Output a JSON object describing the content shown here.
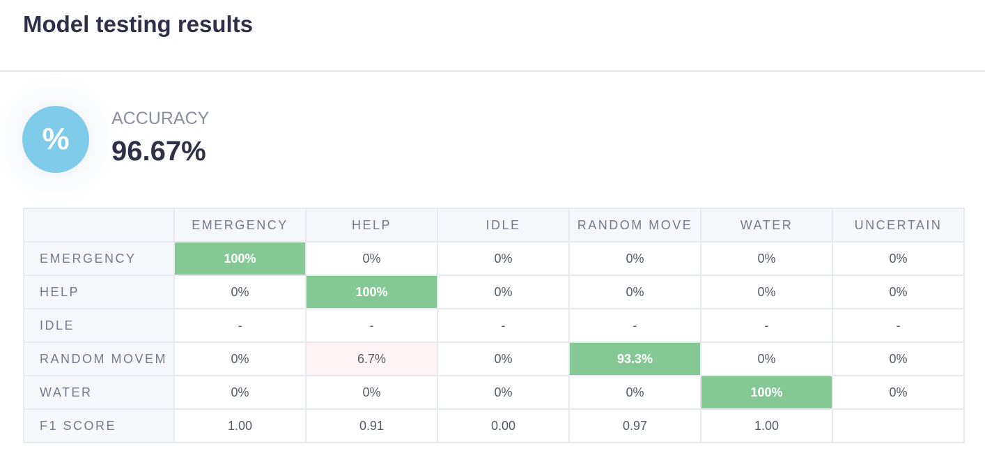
{
  "header": {
    "title": "Model testing results"
  },
  "accuracy": {
    "icon": "%",
    "label": "ACCURACY",
    "value": "96.67%"
  },
  "table": {
    "columns": [
      "EMERGENCY",
      "HELP",
      "IDLE",
      "RANDOM MOVE",
      "WATER",
      "UNCERTAIN"
    ],
    "rows": [
      {
        "label": "EMERGENCY",
        "cells": [
          "100%",
          "0%",
          "0%",
          "0%",
          "0%",
          "0%"
        ]
      },
      {
        "label": "HELP",
        "cells": [
          "0%",
          "100%",
          "0%",
          "0%",
          "0%",
          "0%"
        ]
      },
      {
        "label": "IDLE",
        "cells": [
          "-",
          "-",
          "-",
          "-",
          "-",
          "-"
        ]
      },
      {
        "label": "RANDOM MOVEM",
        "cells": [
          "0%",
          "6.7%",
          "0%",
          "93.3%",
          "0%",
          "0%"
        ]
      },
      {
        "label": "WATER",
        "cells": [
          "0%",
          "0%",
          "0%",
          "0%",
          "100%",
          "0%"
        ]
      },
      {
        "label": "F1 SCORE",
        "cells": [
          "1.00",
          "0.91",
          "0.00",
          "0.97",
          "1.00"
        ]
      }
    ]
  }
}
